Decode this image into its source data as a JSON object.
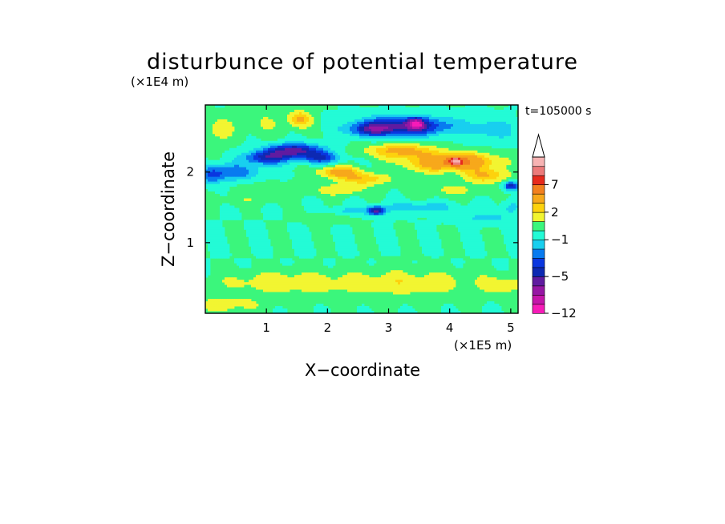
{
  "chart_data": {
    "type": "heatmap",
    "title": "disturbunce of potential temperature",
    "xlabel": "X−coordinate",
    "ylabel": "Z−coordinate",
    "x_unit": "(×1E5 m)",
    "y_unit": "(×1E4 m)",
    "time_label": "t=105000 s",
    "xlim": [
      0,
      5.12
    ],
    "ylim": [
      0,
      2.95
    ],
    "x_ticks": [
      1,
      2,
      3,
      4,
      5
    ],
    "y_ticks": [
      1,
      2
    ],
    "x_tick_labels": [
      "1",
      "2",
      "3",
      "4",
      "5"
    ],
    "y_tick_labels": [
      "1",
      "2"
    ],
    "colorbar": {
      "levels": [
        -12,
        -10,
        -8,
        -6,
        -5,
        -4,
        -3,
        -2,
        -1,
        0,
        1,
        2,
        3,
        5,
        7,
        9,
        11
      ],
      "colors": [
        "#f71bb8",
        "#c515aa",
        "#9616a4",
        "#601ba0",
        "#0d29b3",
        "#0a37e0",
        "#087bf0",
        "#18cfef",
        "#23fbd6",
        "#3bf67c",
        "#f2f531",
        "#fdd20d",
        "#f7a81b",
        "#f2801f",
        "#e72a1d",
        "#ec7a7a",
        "#f7b3b3"
      ],
      "extend": "max",
      "labels": [
        {
          "value": 7,
          "text": "7"
        },
        {
          "value": 2,
          "text": "2"
        },
        {
          "value": -1,
          "text": "−1"
        },
        {
          "value": -5,
          "text": "−5"
        },
        {
          "value": -12,
          "text": "−12"
        }
      ]
    },
    "features": [
      {
        "x": 0.35,
        "z": 0.12,
        "sx": 0.55,
        "sz": 0.12,
        "v": 1.4
      },
      {
        "x": 1.2,
        "z": 0.45,
        "sx": 1.0,
        "sz": 0.15,
        "v": 1.5
      },
      {
        "x": 3.3,
        "z": 0.45,
        "sx": 1.2,
        "sz": 0.17,
        "v": 1.5
      },
      {
        "x": 4.9,
        "z": 0.4,
        "sx": 0.35,
        "sz": 0.14,
        "v": 1.3
      },
      {
        "x": 2.5,
        "z": 0.28,
        "sx": 2.5,
        "sz": 0.22,
        "v": 0.4
      },
      {
        "x": 0.6,
        "z": 1.6,
        "sx": 0.6,
        "sz": 0.08,
        "v": 0.6
      },
      {
        "x": 1.0,
        "z": 1.75,
        "sx": 0.5,
        "sz": 0.12,
        "v": 0.7
      },
      {
        "x": 0.2,
        "z": 2.6,
        "sx": 0.3,
        "sz": 0.2,
        "v": 1.3
      },
      {
        "x": 1.55,
        "z": 2.75,
        "sx": 0.18,
        "sz": 0.11,
        "v": 3.2
      },
      {
        "x": 1.0,
        "z": 2.7,
        "sx": 0.45,
        "sz": 0.18,
        "v": 0.9
      },
      {
        "x": 0.45,
        "z": 2.0,
        "sx": 0.5,
        "sz": 0.12,
        "v": -2.6
      },
      {
        "x": 0.1,
        "z": 1.95,
        "sx": 0.2,
        "sz": 0.12,
        "v": -2.2
      },
      {
        "x": 1.45,
        "z": 2.3,
        "sx": 0.45,
        "sz": 0.1,
        "v": -5.5
      },
      {
        "x": 1.0,
        "z": 2.2,
        "sx": 0.35,
        "sz": 0.09,
        "v": -4.3
      },
      {
        "x": 1.9,
        "z": 2.2,
        "sx": 0.3,
        "sz": 0.08,
        "v": -3.5
      },
      {
        "x": 2.2,
        "z": 2.0,
        "sx": 0.35,
        "sz": 0.08,
        "v": 3.8
      },
      {
        "x": 2.6,
        "z": 1.9,
        "sx": 0.4,
        "sz": 0.08,
        "v": 2.8
      },
      {
        "x": 2.2,
        "z": 1.75,
        "sx": 0.45,
        "sz": 0.08,
        "v": 1.8
      },
      {
        "x": 3.3,
        "z": 2.65,
        "sx": 0.7,
        "sz": 0.13,
        "v": -5.6
      },
      {
        "x": 3.45,
        "z": 2.68,
        "sx": 0.1,
        "sz": 0.06,
        "v": -9.0
      },
      {
        "x": 2.7,
        "z": 2.6,
        "sx": 0.35,
        "sz": 0.1,
        "v": -3.5
      },
      {
        "x": 3.2,
        "z": 2.3,
        "sx": 0.55,
        "sz": 0.1,
        "v": 3.5
      },
      {
        "x": 4.15,
        "z": 2.15,
        "sx": 0.6,
        "sz": 0.12,
        "v": 5.0
      },
      {
        "x": 4.1,
        "z": 2.15,
        "sx": 0.1,
        "sz": 0.05,
        "v": 8.5
      },
      {
        "x": 4.6,
        "z": 1.95,
        "sx": 0.35,
        "sz": 0.1,
        "v": 3.0
      },
      {
        "x": 3.6,
        "z": 2.1,
        "sx": 0.5,
        "sz": 0.12,
        "v": 1.5
      },
      {
        "x": 4.7,
        "z": 2.6,
        "sx": 0.4,
        "sz": 0.15,
        "v": -1.6
      },
      {
        "x": 5.0,
        "z": 1.8,
        "sx": 0.12,
        "sz": 0.06,
        "v": -4.6
      },
      {
        "x": 2.8,
        "z": 1.45,
        "sx": 0.15,
        "sz": 0.06,
        "v": -5.5
      },
      {
        "x": 3.5,
        "z": 1.5,
        "sx": 0.6,
        "sz": 0.08,
        "v": -1.6
      },
      {
        "x": 2.3,
        "z": 1.45,
        "sx": 0.3,
        "sz": 0.06,
        "v": -1.3
      },
      {
        "x": 4.6,
        "z": 1.35,
        "sx": 0.5,
        "sz": 0.08,
        "v": -1.3
      },
      {
        "x": 5.0,
        "z": 1.5,
        "sx": 0.15,
        "sz": 0.1,
        "v": -1.5
      },
      {
        "x": 2.0,
        "z": 1.35,
        "sx": 0.4,
        "sz": 0.07,
        "v": 0.8
      },
      {
        "x": 4.0,
        "z": 1.75,
        "sx": 0.55,
        "sz": 0.1,
        "v": 1.2
      }
    ]
  }
}
